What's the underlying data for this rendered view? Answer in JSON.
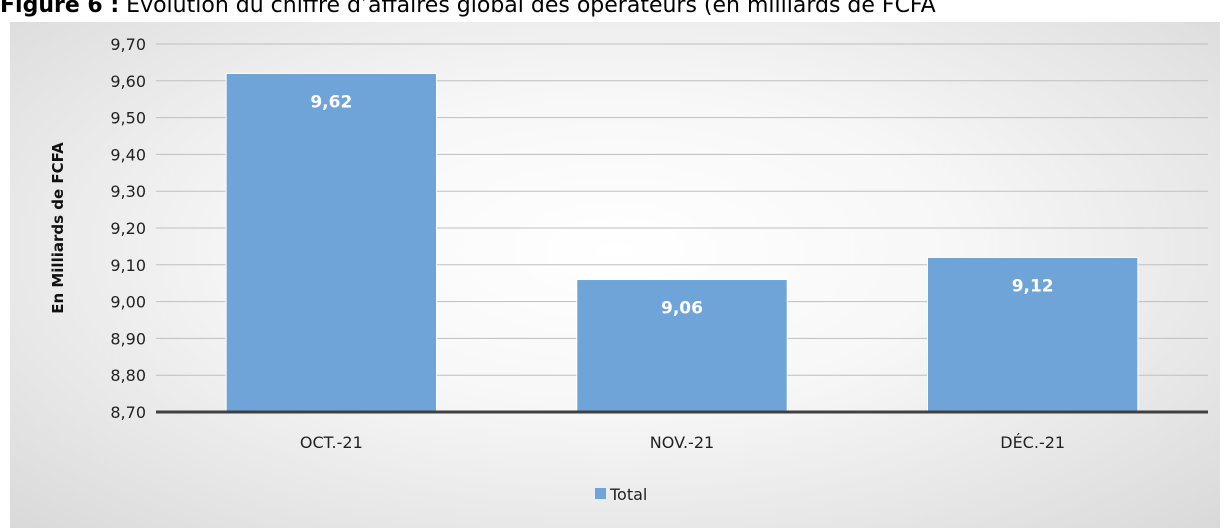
{
  "caption": {
    "prefix": "Figure 6 :",
    "text": " Evolution du chiffre d’affaires global des opérateurs (en milliards de FCFA"
  },
  "colors": {
    "bar": "#6fa4d8",
    "bar_edge": "#ffffff",
    "grid": "#bfbfbf",
    "axis": "#404040"
  },
  "chart_data": {
    "type": "bar",
    "categories": [
      "OCT.-21",
      "NOV.-21",
      "DÉC.-21"
    ],
    "series": [
      {
        "name": "Total",
        "values": [
          9.62,
          9.06,
          9.12
        ]
      }
    ],
    "data_labels": [
      "9,62",
      "9,06",
      "9,12"
    ],
    "ylabel": "En Milliards de FCFA",
    "xlabel": "",
    "ylim": [
      8.7,
      9.7
    ],
    "yticks": [
      "8,70",
      "8,80",
      "8,90",
      "9,00",
      "9,10",
      "9,20",
      "9,30",
      "9,40",
      "9,50",
      "9,60",
      "9,70"
    ],
    "grid": true,
    "legend": {
      "position": "bottom",
      "entries": [
        "Total"
      ]
    }
  }
}
